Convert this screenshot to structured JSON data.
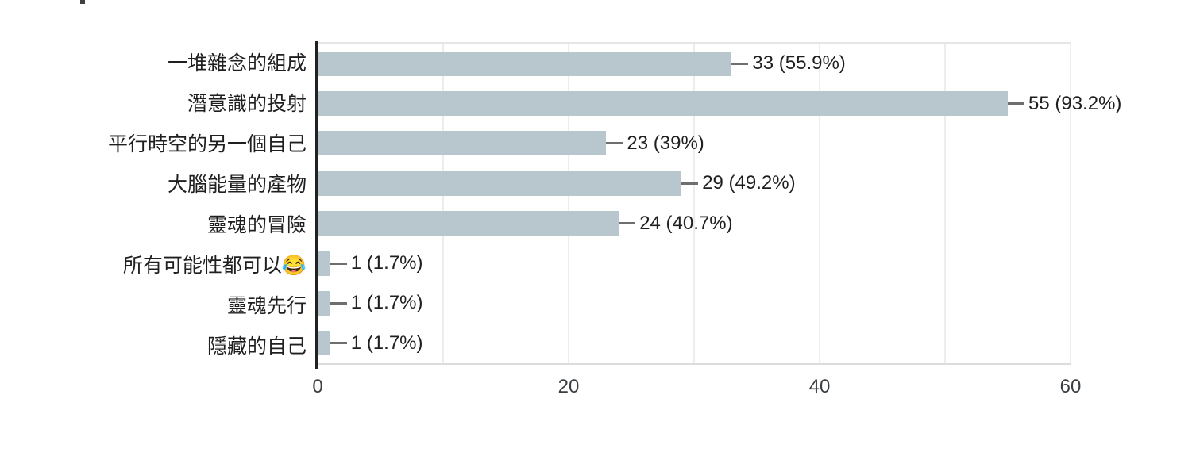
{
  "chart_data": {
    "type": "bar",
    "orientation": "horizontal",
    "title": "",
    "xlabel": "",
    "ylabel": "",
    "categories": [
      "一堆雜念的組成",
      "潛意識的投射",
      "平行時空的另一個自己",
      "大腦能量的產物",
      "靈魂的冒險",
      "所有可能性都可以😂",
      "靈魂先行",
      "隱藏的自己"
    ],
    "values": [
      33,
      55,
      23,
      29,
      24,
      1,
      1,
      1
    ],
    "value_labels": [
      "33 (55.9%)",
      "55 (93.2%)",
      "23 (39%)",
      "29 (49.2%)",
      "24 (40.7%)",
      "1 (1.7%)",
      "1 (1.7%)",
      "1 (1.7%)"
    ],
    "xlim": [
      0,
      60
    ],
    "x_ticks": [
      "0",
      "20",
      "40",
      "60"
    ],
    "x_tick_values": [
      0,
      20,
      40,
      60
    ],
    "gridlines_every": 10,
    "legend": "none",
    "colors": {
      "bar": "#b8c6cd",
      "axis": "#212121",
      "gridline": "#ededed",
      "plot_border": "#e3e3e3",
      "connector": "#6e6e6e",
      "label_text": "#1f1f1f",
      "tick_text": "#3c4043"
    }
  }
}
